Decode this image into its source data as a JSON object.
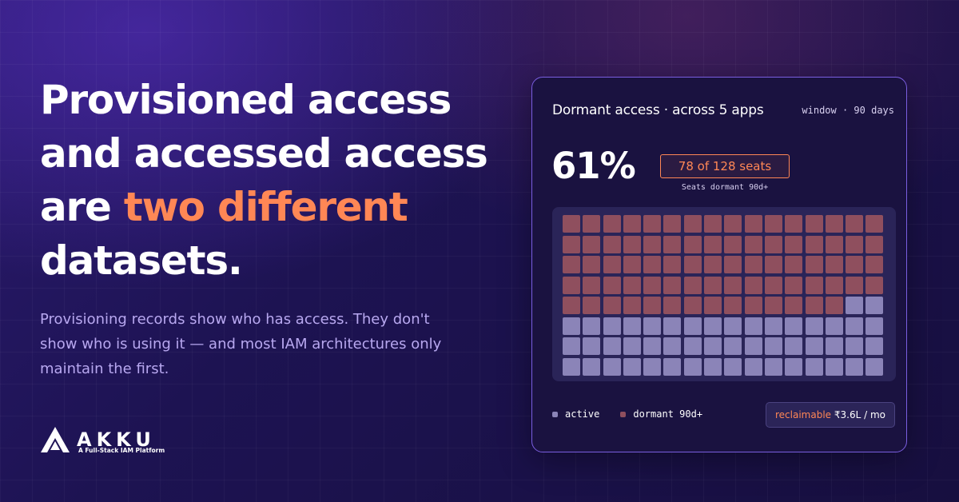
{
  "headline": {
    "line1": "Provisioned access",
    "line2": "and accessed access",
    "line3_prefix": "are ",
    "line3_accent": "two different",
    "line4": "datasets."
  },
  "subtext": "Provisioning records show who has access. They don't show who is using it — and most IAM architectures only maintain the first.",
  "brand": {
    "name": "AKKU",
    "tagline": "A Full-Stack IAM Platform",
    "logo_icon": "akku-logo-icon"
  },
  "card": {
    "title": "Dormant access · across 5 apps",
    "window": "window · 90 days",
    "percent": "61%",
    "seats_badge": "78 of 128 seats",
    "seats_caption": "Seats dormant 90d+",
    "grid": {
      "total": 128,
      "dormant": 78,
      "columns": 16
    },
    "legend": {
      "active": "active",
      "dormant": "dormant 90d+"
    },
    "reclaimable": {
      "label": "reclaimable",
      "value": " ₹3.6L / mo"
    }
  },
  "colors": {
    "accent": "#ff8755",
    "dormant": "#8f4f5e",
    "active": "#8b84b8",
    "card_border": "#7a5ee0",
    "subtext": "#b8a8f0"
  }
}
